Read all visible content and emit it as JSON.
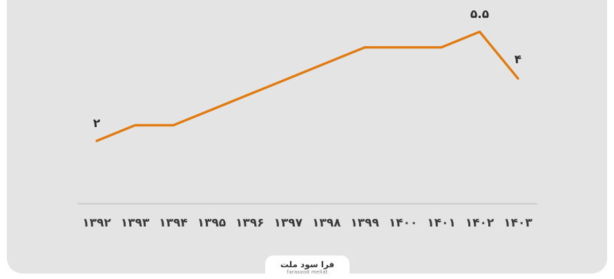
{
  "chart_data": {
    "type": "line",
    "title": "",
    "xlabel": "",
    "ylabel": "",
    "categories": [
      "۱۳۹۲",
      "۱۳۹۳",
      "۱۳۹۴",
      "۱۳۹۵",
      "۱۳۹۶",
      "۱۳۹۷",
      "۱۳۹۸",
      "۱۳۹۹",
      "۱۴۰۰",
      "۱۴۰۱",
      "۱۴۰۲",
      "۱۴۰۳"
    ],
    "series": [
      {
        "values": [
          2,
          2.5,
          2.5,
          3,
          3.5,
          4,
          4.5,
          5,
          5,
          5,
          5.5,
          4
        ]
      }
    ],
    "data_labels": [
      {
        "index": 0,
        "text": "۲"
      },
      {
        "index": 10,
        "text": "۵.۵"
      },
      {
        "index": 11,
        "text": "۴"
      }
    ],
    "ylim": [
      0,
      6
    ],
    "grid": false,
    "line_color": "#e07b12",
    "axis_color": "#c4c4c4"
  },
  "logo": {
    "name_fa": "فرا سود ملت",
    "name_en": "farasood mellat"
  }
}
